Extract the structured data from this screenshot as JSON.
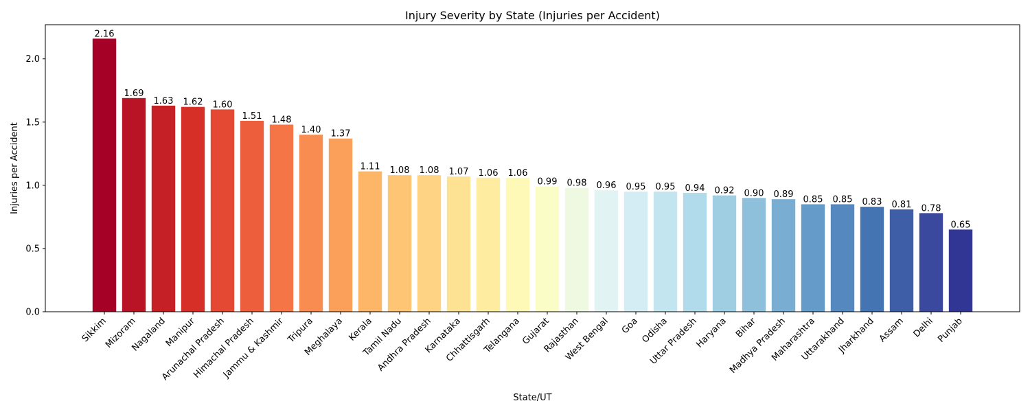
{
  "chart_data": {
    "type": "bar",
    "title": "Injury Severity by State (Injuries per Accident)",
    "xlabel": "State/UT",
    "ylabel": "Injuries per Accident",
    "ylim": [
      0,
      2.27
    ],
    "yticks": [
      0.0,
      0.5,
      1.0,
      1.5,
      2.0
    ],
    "ytick_labels": [
      "0.0",
      "0.5",
      "1.0",
      "1.5",
      "2.0"
    ],
    "grid": false,
    "categories": [
      "Sikkim",
      "Mizoram",
      "Nagaland",
      "Manipur",
      "Arunachal Pradesh",
      "Himachal Pradesh",
      "Jammu & Kashmir",
      "Tripura",
      "Meghalaya",
      "Kerala",
      "Tamil Nadu",
      "Andhra Pradesh",
      "Karnataka",
      "Chhattisgarh",
      "Telangana",
      "Gujarat",
      "Rajasthan",
      "West Bengal",
      "Goa",
      "Odisha",
      "Uttar Pradesh",
      "Haryana",
      "Bihar",
      "Madhya Pradesh",
      "Maharashtra",
      "Uttarakhand",
      "Jharkhand",
      "Assam",
      "Delhi",
      "Punjab"
    ],
    "values": [
      2.16,
      1.69,
      1.63,
      1.62,
      1.6,
      1.51,
      1.48,
      1.4,
      1.37,
      1.11,
      1.08,
      1.08,
      1.07,
      1.06,
      1.06,
      0.99,
      0.98,
      0.96,
      0.95,
      0.95,
      0.94,
      0.92,
      0.9,
      0.89,
      0.85,
      0.85,
      0.83,
      0.81,
      0.78,
      0.65
    ],
    "value_labels": [
      "2.16",
      "1.69",
      "1.63",
      "1.62",
      "1.60",
      "1.51",
      "1.48",
      "1.40",
      "1.37",
      "1.11",
      "1.08",
      "1.08",
      "1.07",
      "1.06",
      "1.06",
      "0.99",
      "0.98",
      "0.96",
      "0.95",
      "0.95",
      "0.94",
      "0.92",
      "0.90",
      "0.89",
      "0.85",
      "0.85",
      "0.83",
      "0.81",
      "0.78",
      "0.65"
    ],
    "colors": [
      "#a50026",
      "#b91326",
      "#c62027",
      "#d62f27",
      "#e34933",
      "#ed5f3c",
      "#f57547",
      "#f88c51",
      "#fba05b",
      "#fdb567",
      "#fdc574",
      "#fed384",
      "#fee294",
      "#feeca1",
      "#fef9b7",
      "#fbfdc7",
      "#eff8e0",
      "#e2f3f3",
      "#d4edf4",
      "#c3e5f0",
      "#b1dbea",
      "#9fcee3",
      "#8ebfdb",
      "#7aadd2",
      "#659bc8",
      "#5488bf",
      "#4574b3",
      "#3f5ea8",
      "#3a489e",
      "#313695"
    ]
  }
}
